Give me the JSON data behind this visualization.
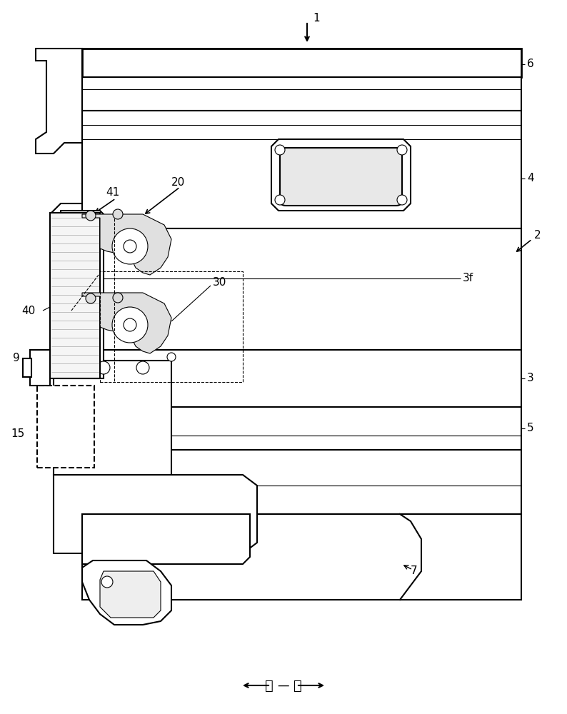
{
  "background_color": "#ffffff",
  "line_color": "#000000",
  "figsize": [
    7.94,
    10.0
  ],
  "dpi": 100,
  "direction_text_right": "右",
  "direction_text_left": "左",
  "lw_thick": 2.0,
  "lw_main": 1.5,
  "lw_thin": 0.8
}
